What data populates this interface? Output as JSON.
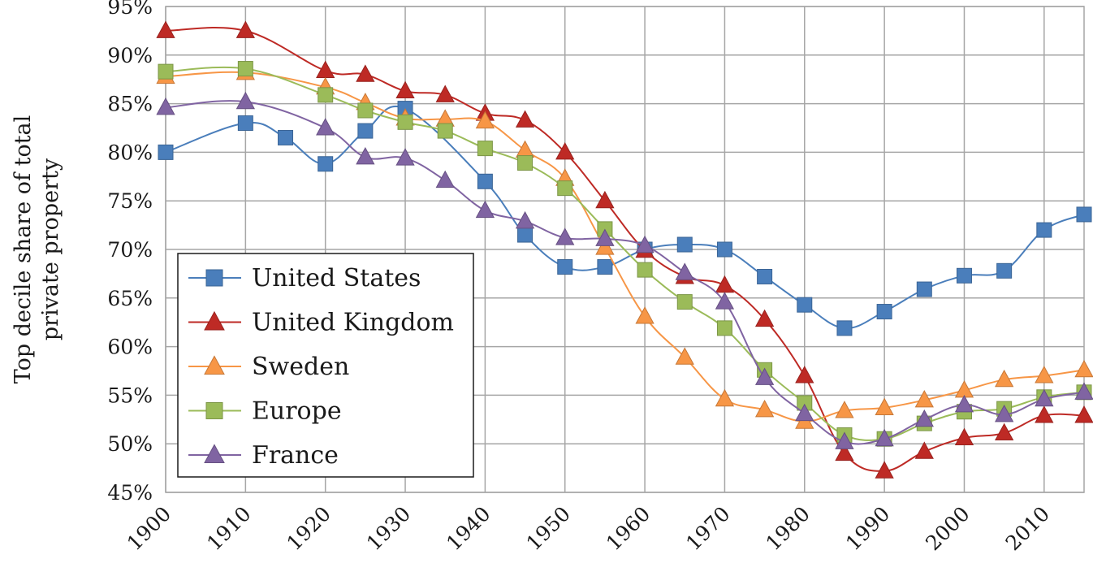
{
  "chart_data": {
    "type": "line",
    "title": "",
    "ylabel_lines": [
      "Top decile share of total",
      "private property"
    ],
    "xlabel": "",
    "x_ticks": [
      "1900",
      "1910",
      "1920",
      "1930",
      "1940",
      "1950",
      "1960",
      "1970",
      "1980",
      "1990",
      "2000",
      "2010"
    ],
    "y_ticks": [
      "45%",
      "50%",
      "55%",
      "60%",
      "65%",
      "70%",
      "75%",
      "80%",
      "85%",
      "90%",
      "95%"
    ],
    "xlim": [
      1900,
      2015
    ],
    "ylim": [
      45,
      95
    ],
    "grid": true,
    "legend_position": "lower-left",
    "series": [
      {
        "name": "United States",
        "color": "#4a7ebb",
        "marker": "square",
        "points": [
          [
            1900,
            80.0
          ],
          [
            1910,
            83.0
          ],
          [
            1915,
            81.5
          ],
          [
            1920,
            78.8
          ],
          [
            1925,
            82.2
          ],
          [
            1930,
            84.5
          ],
          [
            1940,
            77.0
          ],
          [
            1945,
            71.5
          ],
          [
            1950,
            68.2
          ],
          [
            1955,
            68.2
          ],
          [
            1960,
            70.0
          ],
          [
            1965,
            70.5
          ],
          [
            1970,
            70.0
          ],
          [
            1975,
            67.2
          ],
          [
            1980,
            64.3
          ],
          [
            1985,
            61.9
          ],
          [
            1990,
            63.6
          ],
          [
            1995,
            65.9
          ],
          [
            2000,
            67.3
          ],
          [
            2005,
            67.8
          ],
          [
            2010,
            72.0
          ],
          [
            2015,
            73.6
          ]
        ]
      },
      {
        "name": "United Kingdom",
        "color": "#be2a25",
        "marker": "triangle",
        "points": [
          [
            1900,
            92.5
          ],
          [
            1910,
            92.5
          ],
          [
            1920,
            88.4
          ],
          [
            1925,
            88.0
          ],
          [
            1930,
            86.3
          ],
          [
            1935,
            85.9
          ],
          [
            1940,
            84.0
          ],
          [
            1945,
            83.3
          ],
          [
            1950,
            80.0
          ],
          [
            1955,
            75.0
          ],
          [
            1960,
            69.9
          ],
          [
            1965,
            67.2
          ],
          [
            1970,
            66.3
          ],
          [
            1975,
            62.8
          ],
          [
            1980,
            57.0
          ],
          [
            1985,
            49.0
          ],
          [
            1990,
            47.2
          ],
          [
            1995,
            49.2
          ],
          [
            2000,
            50.6
          ],
          [
            2005,
            51.1
          ],
          [
            2010,
            52.9
          ],
          [
            2015,
            52.9
          ]
        ]
      },
      {
        "name": "Sweden",
        "color": "#f79646",
        "marker": "triangle",
        "points": [
          [
            1900,
            87.8
          ],
          [
            1910,
            88.2
          ],
          [
            1920,
            86.7
          ],
          [
            1925,
            85.1
          ],
          [
            1930,
            83.5
          ],
          [
            1935,
            83.4
          ],
          [
            1940,
            83.2
          ],
          [
            1945,
            80.2
          ],
          [
            1950,
            77.3
          ],
          [
            1955,
            70.2
          ],
          [
            1960,
            63.1
          ],
          [
            1965,
            58.9
          ],
          [
            1970,
            54.6
          ],
          [
            1975,
            53.5
          ],
          [
            1980,
            52.3
          ],
          [
            1985,
            53.4
          ],
          [
            1990,
            53.7
          ],
          [
            1995,
            54.5
          ],
          [
            2000,
            55.5
          ],
          [
            2005,
            56.6
          ],
          [
            2010,
            57.0
          ],
          [
            2015,
            57.6
          ]
        ]
      },
      {
        "name": "Europe",
        "color": "#9bbb59",
        "marker": "square",
        "points": [
          [
            1900,
            88.3
          ],
          [
            1910,
            88.6
          ],
          [
            1920,
            85.9
          ],
          [
            1925,
            84.3
          ],
          [
            1930,
            83.1
          ],
          [
            1935,
            82.2
          ],
          [
            1940,
            80.4
          ],
          [
            1945,
            78.9
          ],
          [
            1950,
            76.3
          ],
          [
            1955,
            72.1
          ],
          [
            1960,
            67.9
          ],
          [
            1965,
            64.6
          ],
          [
            1970,
            61.9
          ],
          [
            1975,
            57.6
          ],
          [
            1980,
            54.2
          ],
          [
            1985,
            50.9
          ],
          [
            1990,
            50.5
          ],
          [
            1995,
            52.1
          ],
          [
            2000,
            53.3
          ],
          [
            2005,
            53.6
          ],
          [
            2010,
            54.8
          ],
          [
            2015,
            55.3
          ]
        ]
      },
      {
        "name": "France",
        "color": "#8064a2",
        "marker": "triangle",
        "points": [
          [
            1900,
            84.6
          ],
          [
            1910,
            85.2
          ],
          [
            1920,
            82.5
          ],
          [
            1925,
            79.5
          ],
          [
            1930,
            79.4
          ],
          [
            1935,
            77.1
          ],
          [
            1940,
            74.0
          ],
          [
            1945,
            72.9
          ],
          [
            1950,
            71.2
          ],
          [
            1955,
            71.1
          ],
          [
            1960,
            70.4
          ],
          [
            1965,
            67.6
          ],
          [
            1970,
            64.6
          ],
          [
            1975,
            56.8
          ],
          [
            1980,
            53.1
          ],
          [
            1985,
            50.2
          ],
          [
            1990,
            50.5
          ],
          [
            1995,
            52.5
          ],
          [
            2000,
            54.0
          ],
          [
            2005,
            53.0
          ],
          [
            2010,
            54.6
          ],
          [
            2015,
            55.3
          ]
        ]
      }
    ]
  }
}
